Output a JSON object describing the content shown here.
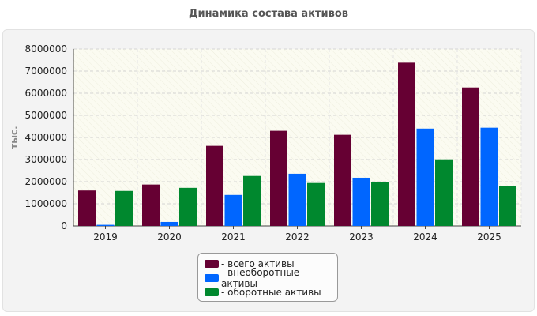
{
  "page": {
    "title": "Динамика состава активов"
  },
  "legend": {
    "items": [
      {
        "label": "- всего активы",
        "color": "#660033"
      },
      {
        "label": "- внеоборотные активы",
        "color": "#0066ff"
      },
      {
        "label": "- оборотные активы",
        "color": "#00882e"
      }
    ]
  },
  "chart_data": {
    "type": "bar",
    "title": "Динамика состава активов",
    "ylabel": "тыс.",
    "xlabel": "",
    "categories": [
      "2019",
      "2020",
      "2021",
      "2022",
      "2023",
      "2024",
      "2025"
    ],
    "ylim": [
      0,
      8000000
    ],
    "yticks": [
      "0",
      "1000000",
      "2000000",
      "3000000",
      "4000000",
      "5000000",
      "6000000",
      "7000000",
      "8000000"
    ],
    "grid": true,
    "legend_position": "bottom",
    "series": [
      {
        "name": "- всего активы",
        "color": "#660033",
        "values": [
          1600000,
          1870000,
          3620000,
          4300000,
          4120000,
          7380000,
          6260000
        ]
      },
      {
        "name": "- внеоборотные активы",
        "color": "#0066ff",
        "values": [
          50000,
          180000,
          1400000,
          2360000,
          2180000,
          4400000,
          4440000
        ]
      },
      {
        "name": "- оборотные активы",
        "color": "#00882e",
        "values": [
          1580000,
          1720000,
          2260000,
          1940000,
          1980000,
          3010000,
          1820000
        ]
      }
    ]
  }
}
